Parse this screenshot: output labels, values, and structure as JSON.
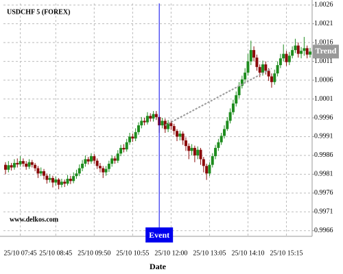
{
  "chart_data": {
    "type": "candlestick",
    "title": "USDCHF 5 (FOREX)",
    "source": "www.delkos.com",
    "x_label": "Date",
    "categories": [
      null,
      null,
      null,
      null,
      null,
      "25/10 07:45",
      null,
      null,
      null,
      null,
      null,
      null,
      null,
      null,
      null,
      null,
      null,
      "25/10 08:45",
      null,
      null,
      null,
      null,
      null,
      null,
      null,
      null,
      null,
      null,
      null,
      null,
      "25/10 09:50",
      null,
      null,
      null,
      null,
      null,
      null,
      null,
      null,
      null,
      null,
      null,
      null,
      "25/10 10:55",
      null,
      null,
      null,
      null,
      null,
      null,
      null,
      null,
      null,
      null,
      null,
      null,
      "25/10 12:00",
      null,
      null,
      null,
      null,
      null,
      null,
      null,
      null,
      null,
      null,
      null,
      null,
      "25/10 13:05",
      null,
      null,
      null,
      null,
      null,
      null,
      null,
      null,
      null,
      null,
      null,
      null,
      "25/10 14:10",
      null,
      null,
      null,
      null,
      null,
      null,
      null,
      null,
      null,
      null,
      null,
      null,
      "25/10 15:15",
      null,
      null,
      null,
      null,
      null,
      null,
      null,
      null
    ],
    "open": [
      0.99835,
      0.99822,
      0.99834,
      0.99828,
      0.9984,
      0.99836,
      0.99845,
      0.99838,
      0.9983,
      0.99842,
      0.99835,
      0.99826,
      0.99812,
      0.99818,
      0.99806,
      0.99795,
      0.998,
      0.99788,
      0.99796,
      0.99782,
      0.9979,
      0.99785,
      0.99798,
      0.99792,
      0.99805,
      0.99812,
      0.99826,
      0.99838,
      0.9985,
      0.99844,
      0.99858,
      0.99846,
      0.99832,
      0.99826,
      0.99815,
      0.99824,
      0.99838,
      0.99852,
      0.99846,
      0.99865,
      0.9988,
      0.99876,
      0.99895,
      0.9991,
      0.99905,
      0.99922,
      0.9994,
      0.99952,
      0.99948,
      0.99965,
      0.99958,
      0.9997,
      0.99962,
      0.9994,
      0.99952,
      0.9993,
      0.99946,
      0.99938,
      0.99925,
      0.9991,
      0.99918,
      0.999,
      0.99885,
      0.99872,
      0.9988,
      0.9986,
      0.99875,
      0.9985,
      0.99832,
      0.99812,
      0.99835,
      0.99858,
      0.9988,
      0.99895,
      0.99912,
      0.9993,
      0.99952,
      0.99975,
      0.99998,
      1.0002,
      1.00045,
      1.00062,
      1.0008,
      1.0011,
      1.0014,
      1.0012,
      1.00095,
      1.0008,
      1.00102,
      1.00085,
      1.0007,
      1.00055,
      1.00078,
      1.001,
      1.00118,
      1.0013,
      1.00108,
      1.00125,
      1.0014,
      1.00152,
      1.0013,
      1.00138,
      1.00145,
      1.00128
    ],
    "high": [
      0.99842,
      0.99845,
      0.9984,
      0.9985,
      0.99852,
      0.99858,
      0.99852,
      0.99845,
      0.9985,
      0.99848,
      0.9984,
      0.99832,
      0.99828,
      0.99824,
      0.99812,
      0.9981,
      0.99806,
      0.99804,
      0.998,
      0.99798,
      0.99796,
      0.99808,
      0.99806,
      0.99815,
      0.99822,
      0.99836,
      0.99848,
      0.9986,
      0.99856,
      0.99866,
      0.99864,
      0.99852,
      0.9984,
      0.99832,
      0.99832,
      0.99846,
      0.9986,
      0.99858,
      0.99874,
      0.99888,
      0.9989,
      0.99904,
      0.9992,
      0.99918,
      0.99932,
      0.99948,
      0.99962,
      0.9996,
      0.99975,
      0.99972,
      0.99978,
      0.99978,
      0.99968,
      0.9996,
      0.99958,
      0.99954,
      0.99952,
      0.99944,
      0.9993,
      0.99926,
      0.99924,
      0.99908,
      0.99892,
      0.9989,
      0.99886,
      0.99884,
      0.9988,
      0.99856,
      0.99838,
      0.99842,
      0.99866,
      0.99888,
      0.99904,
      0.9992,
      0.9994,
      0.99962,
      0.99985,
      1.00008,
      1.0003,
      1.00055,
      1.00072,
      1.00092,
      1.0013,
      1.00165,
      1.0015,
      1.00128,
      1.00102,
      1.00112,
      1.0011,
      1.00092,
      1.00078,
      1.00088,
      1.0011,
      1.0013,
      1.00155,
      1.00138,
      1.00135,
      1.0015,
      1.0017,
      1.0016,
      1.00148,
      1.00175,
      1.00152,
      1.00146
    ],
    "low": [
      0.9981,
      0.99815,
      0.9982,
      0.99822,
      0.99828,
      0.9983,
      0.9983,
      0.99822,
      0.99824,
      0.99828,
      0.99818,
      0.998,
      0.99805,
      0.99796,
      0.99785,
      0.99788,
      0.99775,
      0.9978,
      0.9977,
      0.99775,
      0.99776,
      0.9978,
      0.99784,
      0.99786,
      0.99798,
      0.99805,
      0.99818,
      0.9983,
      0.99836,
      0.99838,
      0.99838,
      0.99824,
      0.99815,
      0.998,
      0.99806,
      0.99816,
      0.9983,
      0.99838,
      0.9984,
      0.99858,
      0.99868,
      0.9987,
      0.99888,
      0.99896,
      0.99898,
      0.99915,
      0.99932,
      0.9994,
      0.99942,
      0.9995,
      0.9995,
      0.99954,
      0.9992,
      0.99932,
      0.9992,
      0.99922,
      0.99928,
      0.99915,
      0.99898,
      0.999,
      0.99888,
      0.99872,
      0.9985,
      0.9986,
      0.99842,
      0.9985,
      0.99835,
      0.99815,
      0.99795,
      0.99805,
      0.99828,
      0.9985,
      0.99872,
      0.99888,
      0.99905,
      0.99925,
      0.99945,
      0.99968,
      0.9999,
      1.00012,
      1.00038,
      1.00055,
      1.00072,
      1.001,
      1.0011,
      1.00085,
      1.00068,
      1.00072,
      1.00075,
      1.00058,
      1.0004,
      1.00048,
      1.0007,
      1.00092,
      1.0011,
      1.00098,
      1.001,
      1.00118,
      1.00132,
      1.0012,
      1.00118,
      1.00125,
      1.00118,
      1.0012
    ],
    "close": [
      0.99822,
      0.99834,
      0.99828,
      0.9984,
      0.99836,
      0.99845,
      0.99838,
      0.9983,
      0.99842,
      0.99835,
      0.99826,
      0.99812,
      0.99818,
      0.99806,
      0.99795,
      0.998,
      0.99788,
      0.99796,
      0.99782,
      0.9979,
      0.99785,
      0.99798,
      0.99792,
      0.99805,
      0.99812,
      0.99826,
      0.99838,
      0.9985,
      0.99844,
      0.99858,
      0.99846,
      0.99832,
      0.99826,
      0.99815,
      0.99824,
      0.99838,
      0.99852,
      0.99846,
      0.99865,
      0.9988,
      0.99876,
      0.99895,
      0.9991,
      0.99905,
      0.99922,
      0.9994,
      0.99952,
      0.99948,
      0.99965,
      0.99958,
      0.9997,
      0.99962,
      0.9994,
      0.99952,
      0.9993,
      0.99946,
      0.99938,
      0.99925,
      0.9991,
      0.99918,
      0.999,
      0.99885,
      0.99872,
      0.9988,
      0.9986,
      0.99875,
      0.9985,
      0.99832,
      0.99812,
      0.99835,
      0.99858,
      0.9988,
      0.99895,
      0.99912,
      0.9993,
      0.99952,
      0.99975,
      0.99998,
      1.0002,
      1.00045,
      1.00062,
      1.0008,
      1.0011,
      1.0014,
      1.0012,
      1.00095,
      1.0008,
      1.00102,
      1.00085,
      1.0007,
      1.00055,
      1.00078,
      1.001,
      1.00118,
      1.0013,
      1.00108,
      1.00125,
      1.0014,
      1.00152,
      1.0013,
      1.00138,
      1.00145,
      1.00128,
      1.00136
    ],
    "up_color": "#1e8c1e",
    "down_color": "#8b0a0a",
    "ylim": [
      0.99645,
      1.00264
    ],
    "yticks": [
      0.9966,
      0.9971,
      0.9976,
      0.9981,
      0.9986,
      0.9991,
      0.9996,
      1.0001,
      1.0006,
      1.0011,
      1.0016,
      1.0021,
      1.0026
    ],
    "grid": true,
    "event": {
      "label": "Event",
      "index": 52,
      "color": "#0000ee"
    },
    "trend": {
      "label": "Trend",
      "x": [
        54,
        90
      ],
      "values": [
        0.9994,
        1.00091
      ],
      "color": "#999999"
    }
  }
}
